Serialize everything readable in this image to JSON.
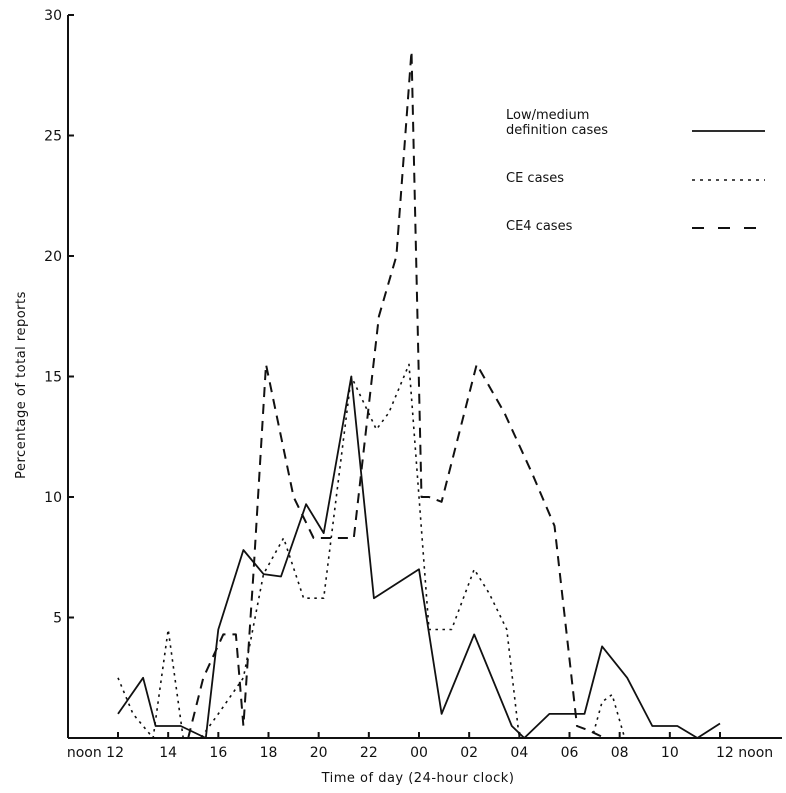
{
  "chart_data": {
    "type": "line",
    "xlabel": "Time of day (24-hour clock)",
    "ylabel": "Percentage of total reports",
    "ylim": [
      0,
      30
    ],
    "yticks": [
      5,
      10,
      15,
      20,
      25,
      30
    ],
    "xlim": [
      12,
      36.5
    ],
    "xticks": [
      {
        "value": 12,
        "label": "noon 12"
      },
      {
        "value": 14,
        "label": "14"
      },
      {
        "value": 16,
        "label": "16"
      },
      {
        "value": 18,
        "label": "18"
      },
      {
        "value": 20,
        "label": "20"
      },
      {
        "value": 22,
        "label": "22"
      },
      {
        "value": 24,
        "label": "00"
      },
      {
        "value": 26,
        "label": "02"
      },
      {
        "value": 28,
        "label": "04"
      },
      {
        "value": 30,
        "label": "06"
      },
      {
        "value": 32,
        "label": "08"
      },
      {
        "value": 34,
        "label": "10"
      },
      {
        "value": 36,
        "label": "12 noon"
      }
    ],
    "grid": false,
    "legend_position": "top-right",
    "series": [
      {
        "name": "Low/medium definition cases",
        "style": "solid",
        "x": [
          12,
          13,
          13.5,
          14.5,
          15.5,
          16,
          17,
          17.8,
          18.5,
          19.5,
          20.2,
          21.3,
          22.2,
          24,
          24.9,
          26.2,
          27.7,
          28.2,
          29.2,
          29.8,
          30.6,
          31.3,
          32.3,
          33.3,
          34.3,
          35.1,
          36
        ],
        "values": [
          1.0,
          2.5,
          0.5,
          0.5,
          0.0,
          4.5,
          7.8,
          6.8,
          6.7,
          9.7,
          8.5,
          15.0,
          5.8,
          7.0,
          1.0,
          4.3,
          0.5,
          0.0,
          1.0,
          1.0,
          1.0,
          3.8,
          2.5,
          0.5,
          0.5,
          0.0,
          0.6
        ]
      },
      {
        "name": "CE cases",
        "style": "dotted",
        "x": [
          12,
          12.6,
          13.4,
          14,
          14.6,
          15.3,
          16,
          17,
          17.8,
          18.6,
          19.4,
          20.2,
          21.3,
          22.3,
          22.8,
          23.6,
          24.4,
          25.3,
          26.2,
          26.8,
          27.5,
          28,
          28.5,
          29.5,
          30.5,
          30.9,
          31.3,
          31.7,
          32.2,
          33,
          33.6,
          34.4,
          35.2,
          36.5
        ],
        "values": [
          2.5,
          1.0,
          0.0,
          4.5,
          0.0,
          0.0,
          1.0,
          2.5,
          6.8,
          8.3,
          5.8,
          5.8,
          15.0,
          12.8,
          13.5,
          15.5,
          4.5,
          4.5,
          7.0,
          6.0,
          4.5,
          0.0,
          0.0,
          0.0,
          0.0,
          0.0,
          1.5,
          1.8,
          0.0,
          0.0,
          0.0,
          0.0,
          0.0,
          0.0
        ]
      },
      {
        "name": "CE4 cases",
        "style": "dashed",
        "x": [
          14.8,
          15.4,
          16.2,
          16.7,
          17.0,
          17.4,
          17.9,
          19.0,
          19.8,
          20.5,
          21.4,
          22.4,
          23.1,
          23.7,
          24.1,
          24.4,
          24.9,
          26.3,
          27.4,
          28.5,
          29.4,
          30.3,
          30.8,
          31.4,
          32.0
        ],
        "values": [
          0.0,
          2.5,
          4.3,
          4.3,
          0.5,
          6.8,
          15.5,
          10.0,
          8.3,
          8.3,
          8.3,
          17.5,
          20.0,
          28.5,
          10.0,
          10.0,
          9.8,
          15.5,
          13.5,
          11.0,
          8.8,
          0.5,
          0.3,
          0.0,
          0.0
        ]
      }
    ]
  }
}
